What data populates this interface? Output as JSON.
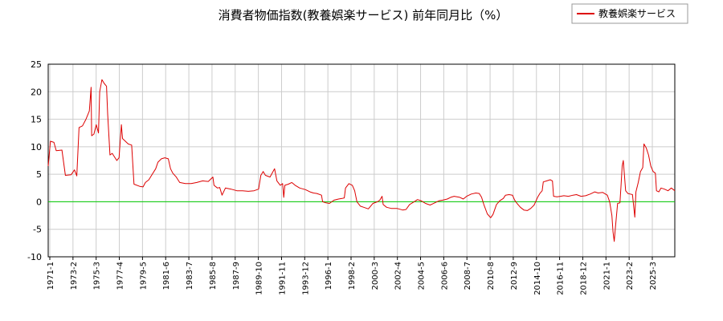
{
  "chart_data": {
    "type": "line",
    "title": "消費者物価指数(教養娯楽サービス) 前年同月比（%）",
    "xlabel": "",
    "ylabel": "",
    "ylim": [
      -10,
      25
    ],
    "yticks": [
      -10,
      -5,
      0,
      5,
      10,
      15,
      20,
      25
    ],
    "xticks": [
      "1971-1",
      "1973-2",
      "1975-3",
      "1977-4",
      "1979-5",
      "1981-6",
      "1983-7",
      "1985-8",
      "1987-9",
      "1989-10",
      "1991-11",
      "1993-12",
      "1996-1",
      "1998-2",
      "2000-3",
      "2002-4",
      "2004-5",
      "2006-6",
      "2008-7",
      "2010-8",
      "2012-9",
      "2014-10",
      "2016-11",
      "2018-12",
      "2021-1",
      "2023-2",
      "2025-3"
    ],
    "grid": true,
    "legend_position": "top-right",
    "zero_line_color": "#00cc00",
    "series": [
      {
        "name": "教養娯楽サービス",
        "color": "#dd0000",
        "x_start": 1971.0,
        "x_end": 2025.8,
        "values": [
          [
            1971.0,
            6.5
          ],
          [
            1971.2,
            11.0
          ],
          [
            1971.5,
            10.8
          ],
          [
            1971.7,
            9.3
          ],
          [
            1972.2,
            9.4
          ],
          [
            1972.5,
            4.8
          ],
          [
            1973.0,
            4.9
          ],
          [
            1973.3,
            5.8
          ],
          [
            1973.5,
            4.7
          ],
          [
            1973.7,
            13.5
          ],
          [
            1974.0,
            13.8
          ],
          [
            1974.3,
            15.0
          ],
          [
            1974.6,
            16.5
          ],
          [
            1974.75,
            20.8
          ],
          [
            1974.8,
            12.0
          ],
          [
            1975.0,
            12.3
          ],
          [
            1975.2,
            14.0
          ],
          [
            1975.4,
            12.5
          ],
          [
            1975.5,
            20.0
          ],
          [
            1975.7,
            22.2
          ],
          [
            1975.9,
            21.5
          ],
          [
            1976.1,
            21.0
          ],
          [
            1976.2,
            16.0
          ],
          [
            1976.4,
            8.5
          ],
          [
            1976.6,
            8.8
          ],
          [
            1977.0,
            7.5
          ],
          [
            1977.2,
            8.0
          ],
          [
            1977.4,
            14.0
          ],
          [
            1977.5,
            11.5
          ],
          [
            1978.0,
            10.5
          ],
          [
            1978.3,
            10.3
          ],
          [
            1978.5,
            3.2
          ],
          [
            1979.0,
            2.8
          ],
          [
            1979.3,
            2.7
          ],
          [
            1979.5,
            3.5
          ],
          [
            1979.8,
            4.0
          ],
          [
            1980.1,
            5.0
          ],
          [
            1980.4,
            6.0
          ],
          [
            1980.6,
            7.2
          ],
          [
            1980.9,
            7.8
          ],
          [
            1981.2,
            8.0
          ],
          [
            1981.5,
            7.8
          ],
          [
            1981.7,
            6.0
          ],
          [
            1981.9,
            5.2
          ],
          [
            1982.2,
            4.5
          ],
          [
            1982.5,
            3.5
          ],
          [
            1983.0,
            3.3
          ],
          [
            1983.5,
            3.3
          ],
          [
            1984.0,
            3.5
          ],
          [
            1984.5,
            3.8
          ],
          [
            1985.0,
            3.7
          ],
          [
            1985.4,
            4.5
          ],
          [
            1985.5,
            3.0
          ],
          [
            1985.8,
            2.5
          ],
          [
            1986.0,
            2.6
          ],
          [
            1986.2,
            1.2
          ],
          [
            1986.5,
            2.5
          ],
          [
            1987.0,
            2.3
          ],
          [
            1987.5,
            2.0
          ],
          [
            1988.0,
            2.0
          ],
          [
            1988.5,
            1.9
          ],
          [
            1989.0,
            2.0
          ],
          [
            1989.4,
            2.3
          ],
          [
            1989.6,
            4.8
          ],
          [
            1989.8,
            5.5
          ],
          [
            1990.0,
            4.8
          ],
          [
            1990.4,
            4.5
          ],
          [
            1990.8,
            6.0
          ],
          [
            1991.0,
            3.8
          ],
          [
            1991.3,
            3.0
          ],
          [
            1991.5,
            3.3
          ],
          [
            1991.6,
            0.8
          ],
          [
            1991.7,
            3.0
          ],
          [
            1992.0,
            3.2
          ],
          [
            1992.3,
            3.5
          ],
          [
            1992.6,
            3.0
          ],
          [
            1993.0,
            2.5
          ],
          [
            1993.5,
            2.2
          ],
          [
            1993.9,
            1.8
          ],
          [
            1994.2,
            1.6
          ],
          [
            1994.5,
            1.5
          ],
          [
            1994.9,
            1.2
          ],
          [
            1995.0,
            0.0
          ],
          [
            1995.3,
            -0.2
          ],
          [
            1995.6,
            -0.3
          ],
          [
            1996.0,
            0.3
          ],
          [
            1996.4,
            0.5
          ],
          [
            1996.7,
            0.6
          ],
          [
            1996.9,
            0.7
          ],
          [
            1997.0,
            2.5
          ],
          [
            1997.3,
            3.3
          ],
          [
            1997.6,
            3.0
          ],
          [
            1997.8,
            2.0
          ],
          [
            1998.0,
            0.0
          ],
          [
            1998.3,
            -0.8
          ],
          [
            1998.6,
            -1.0
          ],
          [
            1999.0,
            -1.3
          ],
          [
            1999.4,
            -0.3
          ],
          [
            1999.8,
            0.0
          ],
          [
            2000.0,
            0.3
          ],
          [
            2000.2,
            1.0
          ],
          [
            2000.3,
            -0.5
          ],
          [
            2000.6,
            -1.0
          ],
          [
            2001.0,
            -1.2
          ],
          [
            2001.5,
            -1.2
          ],
          [
            2002.0,
            -1.5
          ],
          [
            2002.3,
            -1.4
          ],
          [
            2002.6,
            -0.5
          ],
          [
            2003.0,
            0.0
          ],
          [
            2003.3,
            0.4
          ],
          [
            2003.6,
            0.2
          ],
          [
            2004.0,
            -0.3
          ],
          [
            2004.4,
            -0.6
          ],
          [
            2004.8,
            -0.2
          ],
          [
            2005.2,
            0.2
          ],
          [
            2005.5,
            0.3
          ],
          [
            2005.9,
            0.5
          ],
          [
            2006.2,
            0.8
          ],
          [
            2006.5,
            1.0
          ],
          [
            2007.0,
            0.8
          ],
          [
            2007.3,
            0.5
          ],
          [
            2007.6,
            1.0
          ],
          [
            2008.0,
            1.4
          ],
          [
            2008.4,
            1.6
          ],
          [
            2008.7,
            1.5
          ],
          [
            2008.9,
            0.8
          ],
          [
            2009.1,
            -0.5
          ],
          [
            2009.4,
            -2.2
          ],
          [
            2009.7,
            -2.9
          ],
          [
            2009.9,
            -2.3
          ],
          [
            2010.2,
            -0.5
          ],
          [
            2010.5,
            0.2
          ],
          [
            2010.8,
            0.6
          ],
          [
            2011.0,
            1.2
          ],
          [
            2011.3,
            1.3
          ],
          [
            2011.6,
            1.2
          ],
          [
            2011.8,
            0.3
          ],
          [
            2012.0,
            -0.3
          ],
          [
            2012.3,
            -1.0
          ],
          [
            2012.6,
            -1.5
          ],
          [
            2012.9,
            -1.6
          ],
          [
            2013.2,
            -1.2
          ],
          [
            2013.5,
            -0.6
          ],
          [
            2013.8,
            0.8
          ],
          [
            2014.0,
            1.5
          ],
          [
            2014.2,
            2.0
          ],
          [
            2014.3,
            3.6
          ],
          [
            2014.6,
            3.8
          ],
          [
            2014.9,
            4.0
          ],
          [
            2015.1,
            3.8
          ],
          [
            2015.2,
            1.0
          ],
          [
            2015.5,
            0.9
          ],
          [
            2015.8,
            1.0
          ],
          [
            2016.1,
            1.1
          ],
          [
            2016.5,
            1.0
          ],
          [
            2016.9,
            1.2
          ],
          [
            2017.2,
            1.3
          ],
          [
            2017.6,
            1.0
          ],
          [
            2018.0,
            1.1
          ],
          [
            2018.4,
            1.4
          ],
          [
            2018.8,
            1.8
          ],
          [
            2019.1,
            1.6
          ],
          [
            2019.5,
            1.7
          ],
          [
            2019.9,
            1.2
          ],
          [
            2020.1,
            0.0
          ],
          [
            2020.3,
            -2.5
          ],
          [
            2020.4,
            -5.5
          ],
          [
            2020.5,
            -7.2
          ],
          [
            2020.6,
            -4.8
          ],
          [
            2020.8,
            -0.3
          ],
          [
            2021.0,
            -0.2
          ],
          [
            2021.1,
            3.0
          ],
          [
            2021.2,
            6.5
          ],
          [
            2021.3,
            7.5
          ],
          [
            2021.5,
            2.0
          ],
          [
            2021.7,
            1.5
          ],
          [
            2021.9,
            1.4
          ],
          [
            2022.1,
            1.3
          ],
          [
            2022.3,
            -2.8
          ],
          [
            2022.4,
            1.8
          ],
          [
            2022.6,
            3.5
          ],
          [
            2022.8,
            5.5
          ],
          [
            2023.0,
            6.2
          ],
          [
            2023.1,
            10.5
          ],
          [
            2023.3,
            9.8
          ],
          [
            2023.5,
            8.5
          ],
          [
            2023.7,
            6.5
          ],
          [
            2023.9,
            5.5
          ],
          [
            2024.1,
            5.2
          ],
          [
            2024.2,
            2.0
          ],
          [
            2024.4,
            1.8
          ],
          [
            2024.6,
            2.5
          ],
          [
            2024.9,
            2.3
          ],
          [
            2025.2,
            2.0
          ],
          [
            2025.5,
            2.5
          ],
          [
            2025.8,
            2.0
          ]
        ]
      }
    ]
  }
}
